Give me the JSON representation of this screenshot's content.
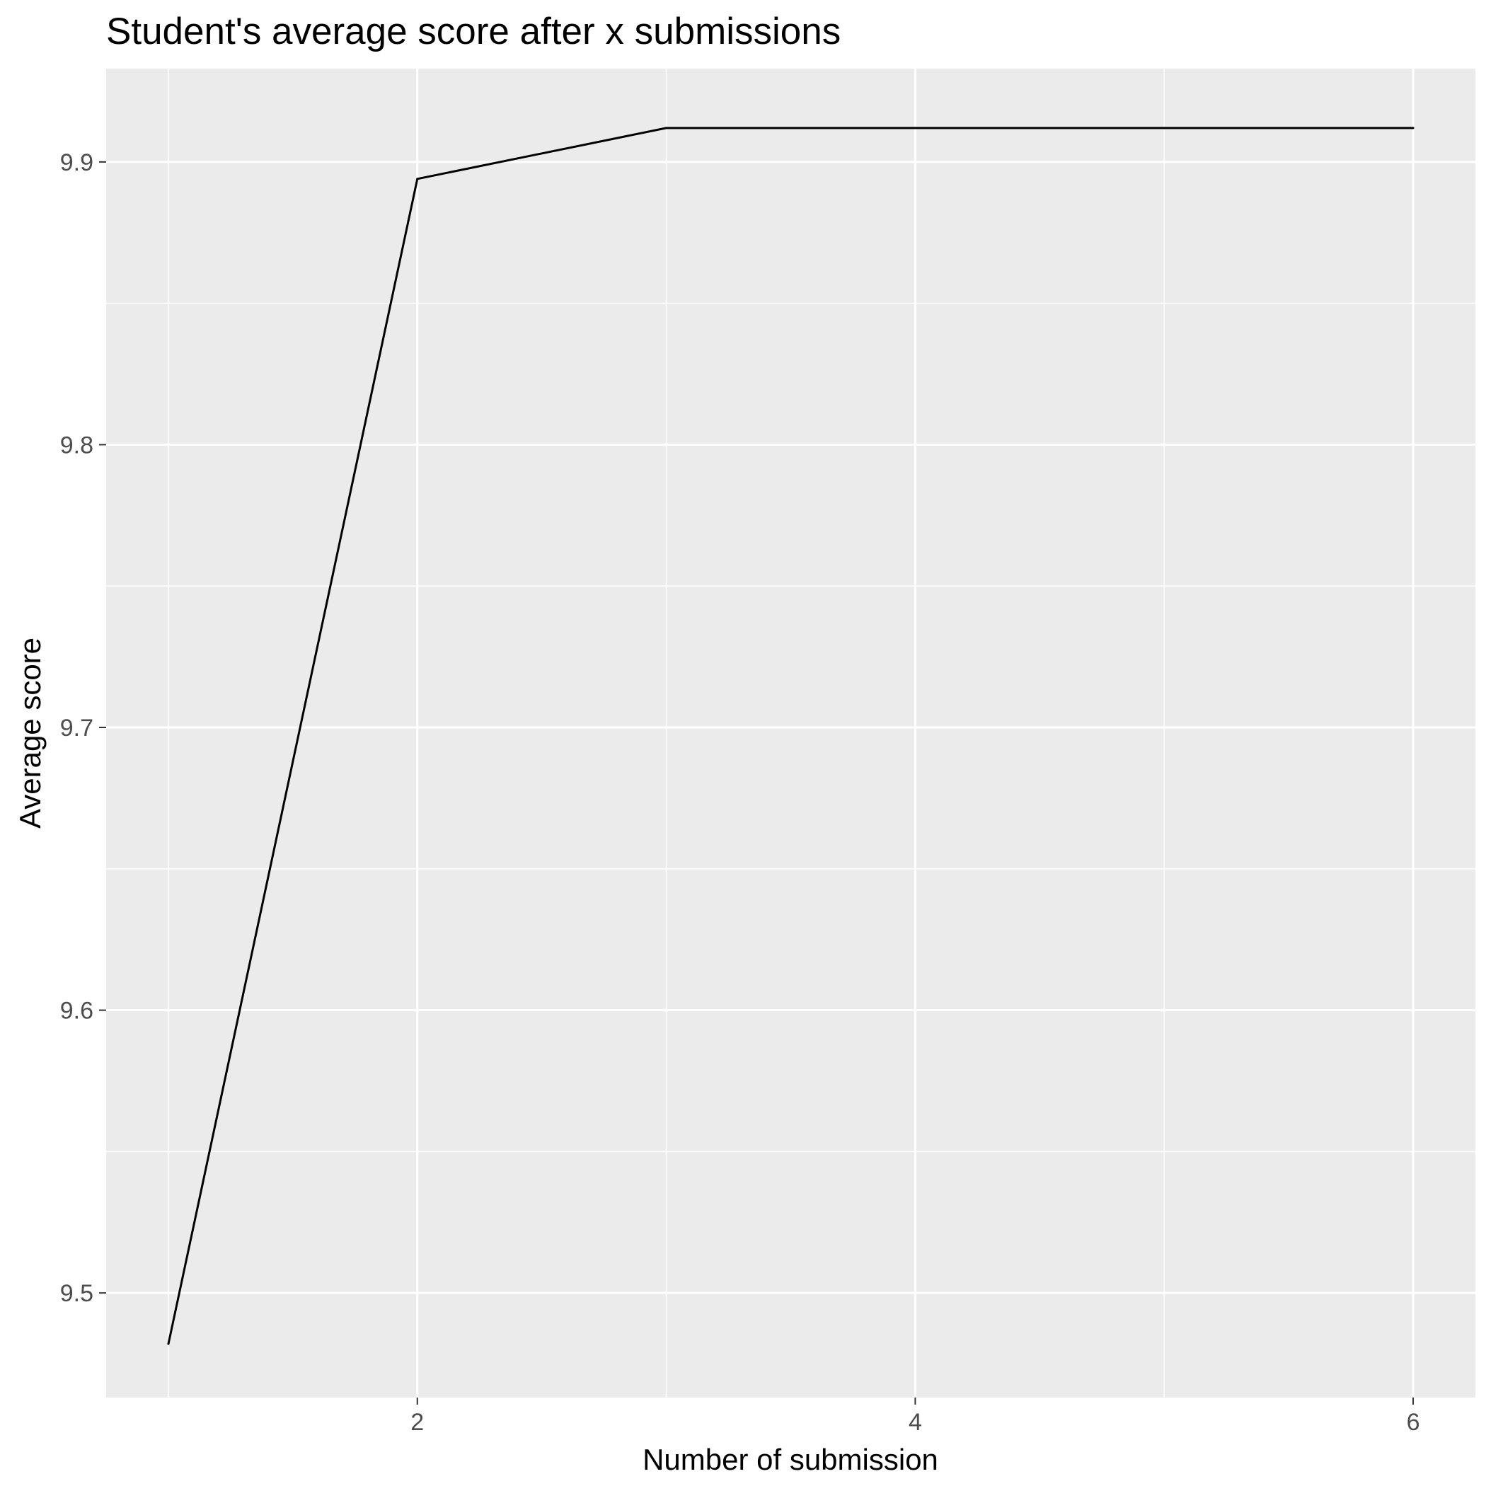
{
  "chart_data": {
    "type": "line",
    "title": "Student's average score after x submissions",
    "xlabel": "Number of submission",
    "ylabel": "Average score",
    "xlim": [
      0.75,
      6.25
    ],
    "ylim": [
      9.463,
      9.933
    ],
    "x_ticks": [
      2,
      4,
      6
    ],
    "x_tick_labels": [
      "2",
      "4",
      "6"
    ],
    "x_minor_ticks": [
      1,
      3,
      5
    ],
    "y_ticks": [
      9.5,
      9.6,
      9.7,
      9.8,
      9.9
    ],
    "y_tick_labels": [
      "9.5",
      "9.6",
      "9.7",
      "9.8",
      "9.9"
    ],
    "y_minor_ticks": [
      9.55,
      9.65,
      9.75,
      9.85
    ],
    "grid": true,
    "legend": "none",
    "series": [
      {
        "x": [
          1,
          2,
          3,
          4,
          5,
          6
        ],
        "values": [
          9.482,
          9.894,
          9.912,
          9.912,
          9.912,
          9.912
        ]
      }
    ],
    "colors": {
      "panel_background": "#ebebeb",
      "grid": "#ffffff",
      "line": "#000000",
      "tick_label": "#4d4d4d",
      "tick_mark": "#333333"
    }
  }
}
